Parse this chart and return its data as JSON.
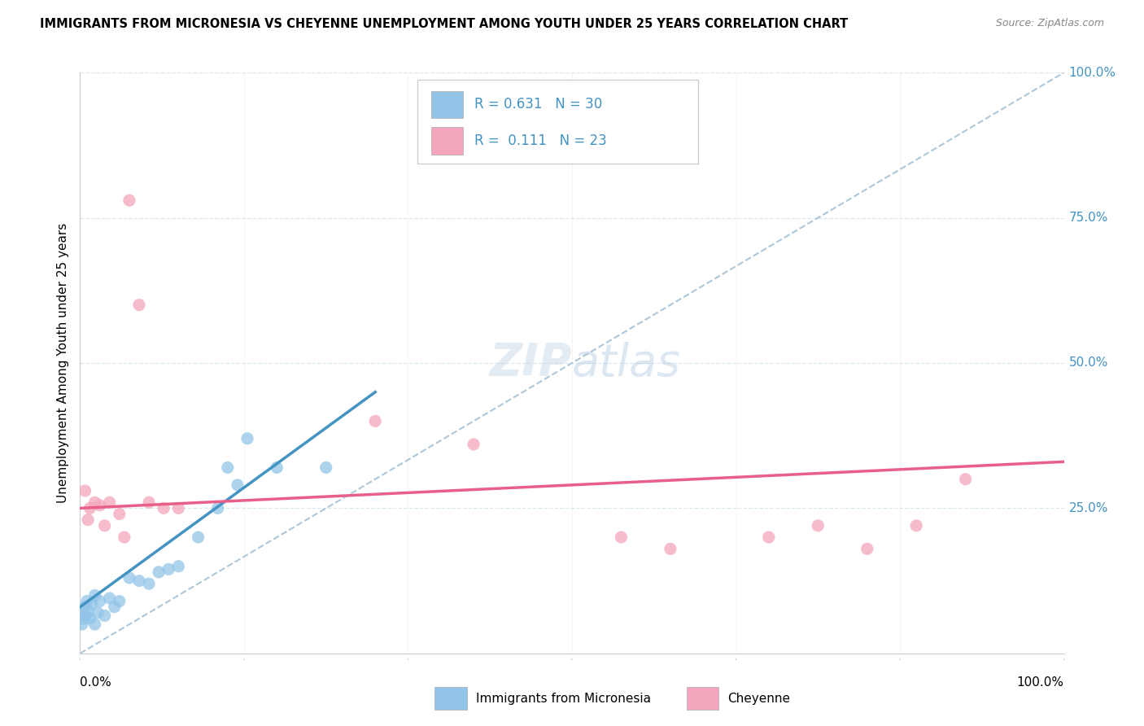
{
  "title": "IMMIGRANTS FROM MICRONESIA VS CHEYENNE UNEMPLOYMENT AMONG YOUTH UNDER 25 YEARS CORRELATION CHART",
  "source": "Source: ZipAtlas.com",
  "ylabel": "Unemployment Among Youth under 25 years",
  "legend_label_blue": "Immigrants from Micronesia",
  "legend_label_pink": "Cheyenne",
  "R_blue": 0.631,
  "N_blue": 30,
  "R_pink": 0.111,
  "N_pink": 23,
  "blue_color": "#92c5e8",
  "pink_color": "#f4a6bc",
  "blue_line_color": "#4393c3",
  "pink_line_color": "#e8608a",
  "dashed_line_color": "#aec7d8",
  "label_color": "#4393c3",
  "scatter_blue": [
    [
      0.2,
      5.0
    ],
    [
      0.3,
      7.0
    ],
    [
      0.4,
      6.0
    ],
    [
      0.5,
      8.0
    ],
    [
      0.6,
      6.5
    ],
    [
      0.7,
      9.0
    ],
    [
      0.8,
      7.5
    ],
    [
      1.0,
      6.0
    ],
    [
      1.2,
      8.5
    ],
    [
      1.5,
      5.0
    ],
    [
      1.5,
      10.0
    ],
    [
      1.8,
      7.0
    ],
    [
      2.0,
      9.0
    ],
    [
      2.5,
      6.5
    ],
    [
      3.0,
      9.5
    ],
    [
      3.5,
      8.0
    ],
    [
      4.0,
      9.0
    ],
    [
      5.0,
      13.0
    ],
    [
      6.0,
      12.5
    ],
    [
      7.0,
      12.0
    ],
    [
      8.0,
      14.0
    ],
    [
      9.0,
      14.5
    ],
    [
      10.0,
      15.0
    ],
    [
      12.0,
      20.0
    ],
    [
      14.0,
      25.0
    ],
    [
      15.0,
      32.0
    ],
    [
      16.0,
      29.0
    ],
    [
      17.0,
      37.0
    ],
    [
      20.0,
      32.0
    ],
    [
      25.0,
      32.0
    ]
  ],
  "scatter_pink": [
    [
      0.5,
      28.0
    ],
    [
      0.8,
      23.0
    ],
    [
      1.0,
      25.0
    ],
    [
      1.5,
      26.0
    ],
    [
      2.0,
      25.5
    ],
    [
      2.5,
      22.0
    ],
    [
      3.0,
      26.0
    ],
    [
      4.0,
      24.0
    ],
    [
      4.5,
      20.0
    ],
    [
      5.0,
      78.0
    ],
    [
      6.0,
      60.0
    ],
    [
      7.0,
      26.0
    ],
    [
      8.5,
      25.0
    ],
    [
      10.0,
      25.0
    ],
    [
      30.0,
      40.0
    ],
    [
      40.0,
      36.0
    ],
    [
      55.0,
      20.0
    ],
    [
      60.0,
      18.0
    ],
    [
      70.0,
      20.0
    ],
    [
      75.0,
      22.0
    ],
    [
      80.0,
      18.0
    ],
    [
      85.0,
      22.0
    ],
    [
      90.0,
      30.0
    ]
  ],
  "blue_trend_x": [
    0,
    30
  ],
  "blue_trend_y": [
    8.0,
    45.0
  ],
  "pink_trend_x": [
    0,
    100
  ],
  "pink_trend_y": [
    25.0,
    33.0
  ],
  "xlim": [
    0,
    100
  ],
  "ylim": [
    0,
    100
  ],
  "yticks": [
    0,
    25,
    50,
    75,
    100
  ],
  "xticks": [
    0,
    16.67,
    33.33,
    50,
    66.67,
    83.33,
    100
  ],
  "grid_color": "#d8e8f0",
  "spine_color": "#cccccc"
}
